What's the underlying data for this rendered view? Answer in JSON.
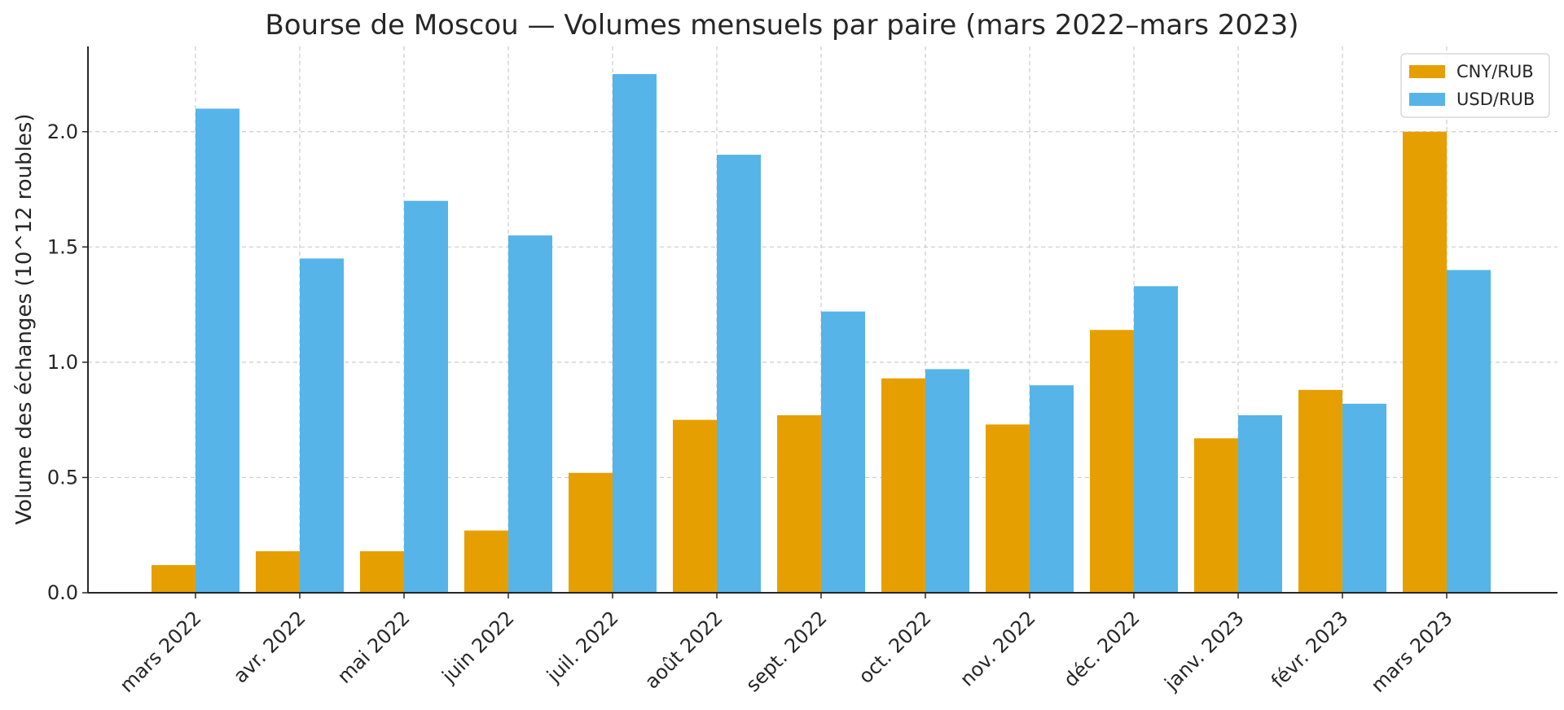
{
  "chart_data": {
    "type": "bar",
    "title": "Bourse de Moscou — Volumes mensuels par paire (mars 2022–mars 2023)",
    "xlabel": "",
    "ylabel": "Volume des échanges (10^12 roubles)",
    "categories": [
      "mars 2022",
      "avr. 2022",
      "mai 2022",
      "juin 2022",
      "juil. 2022",
      "août 2022",
      "sept. 2022",
      "oct. 2022",
      "nov. 2022",
      "déc. 2022",
      "janv. 2023",
      "févr. 2023",
      "mars 2023"
    ],
    "series": [
      {
        "name": "CNY/RUB",
        "color": "#E69F00",
        "values": [
          0.12,
          0.18,
          0.18,
          0.27,
          0.52,
          0.75,
          0.77,
          0.93,
          0.73,
          1.14,
          0.67,
          0.88,
          2.0
        ]
      },
      {
        "name": "USD/RUB",
        "color": "#56B4E9",
        "values": [
          2.1,
          1.45,
          1.7,
          1.55,
          2.25,
          1.9,
          1.22,
          0.97,
          0.9,
          1.33,
          0.77,
          0.82,
          1.4
        ]
      }
    ],
    "ylim": [
      0,
      2.37
    ],
    "yticks": [
      0.0,
      0.5,
      1.0,
      1.5,
      2.0
    ],
    "ytick_labels": [
      "0.0",
      "0.5",
      "1.0",
      "1.5",
      "2.0"
    ],
    "grid": true,
    "legend_position": "top-right"
  }
}
